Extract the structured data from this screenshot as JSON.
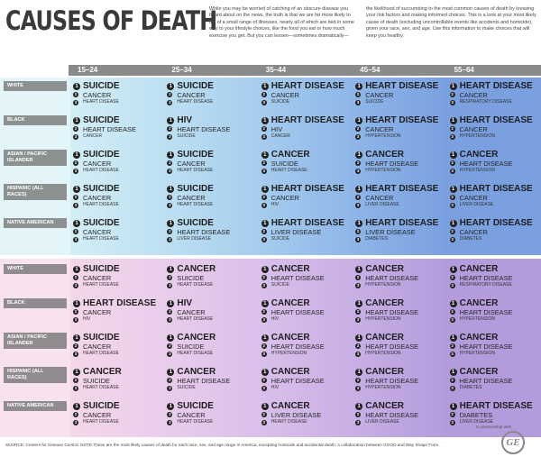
{
  "header": {
    "title": "CAUSES OF DEATH",
    "intro": [
      "While you may be worried of catching of an obscure disease you heard about on the news, the truth is that we are far more likely to die of a small range of illnesses, nearly all of which are tied in some way to your lifestyle choices, like the food you eat or how much exercise you get. But you can lessen—sometimes dramatically—",
      "the likelihood of succumbing to the most common causes of death by knowing your risk factors and making informed choices. This is a look at your most likely cause of death (excluding uncontrollable events like accidents and homicide), given your race, sex, and age. Use this information to make choices that will keep you healthy."
    ]
  },
  "age_groups": [
    "15–24",
    "25–34",
    "35–44",
    "45–54",
    "55–64"
  ],
  "ranks": [
    "1",
    "2",
    "3"
  ],
  "sections": [
    {
      "rows": [
        {
          "label": "WHITE",
          "cells": [
            [
              "SUICIDE",
              "CANCER",
              "HEART DISEASE"
            ],
            [
              "SUICIDE",
              "CANCER",
              "HEART DISEASE"
            ],
            [
              "HEART DISEASE",
              "CANCER",
              "SUICIDE"
            ],
            [
              "HEART DISEASE",
              "CANCER",
              "SUICIDE"
            ],
            [
              "HEART DISEASE",
              "CANCER",
              "RESPIRATORY DISEASE"
            ]
          ]
        },
        {
          "label": "BLACK",
          "cells": [
            [
              "SUICIDE",
              "HEART DISEASE",
              "CANCER"
            ],
            [
              "HIV",
              "HEART DISEASE",
              "SUICIDE"
            ],
            [
              "HEART DISEASE",
              "HIV",
              "CANCER"
            ],
            [
              "HEART DISEASE",
              "CANCER",
              "HYPERTENSION"
            ],
            [
              "HEART DISEASE",
              "CANCER",
              "HYPERTENSION"
            ]
          ]
        },
        {
          "label": "ASIAN / PACIFIC ISLANDER",
          "cells": [
            [
              "SUICIDE",
              "CANCER",
              "HEART DISEASE"
            ],
            [
              "SUICIDE",
              "CANCER",
              "HEART DISEASE"
            ],
            [
              "CANCER",
              "SUICIDE",
              "HEART DISEASE"
            ],
            [
              "CANCER",
              "HEART DISEASE",
              "HYPERTENSION"
            ],
            [
              "CANCER",
              "HEART DISEASE",
              "HYPERTENSION"
            ]
          ]
        },
        {
          "label": "HISPANIC (ALL RACES)",
          "cells": [
            [
              "SUICIDE",
              "CANCER",
              "HEART DISEASE"
            ],
            [
              "SUICIDE",
              "CANCER",
              "HEART DISEASE"
            ],
            [
              "HEART DISEASE",
              "CANCER",
              "HIV"
            ],
            [
              "HEART DISEASE",
              "CANCER",
              "LIVER DISEASE"
            ],
            [
              "HEART DISEASE",
              "CANCER",
              "LIVER DISEASE"
            ]
          ]
        },
        {
          "label": "NATIVE AMERICAN",
          "cells": [
            [
              "SUICIDE",
              "CANCER",
              "HEART DISEASE"
            ],
            [
              "SUICIDE",
              "HEART DISEASE",
              "LIVER DISEASE"
            ],
            [
              "HEART DISEASE",
              "LIVER DISEASE",
              "SUICIDE"
            ],
            [
              "HEART DISEASE",
              "LIVER DISEASE",
              "DIABETES"
            ],
            [
              "HEART DISEASE",
              "CANCER",
              "DIABETES"
            ]
          ]
        }
      ]
    },
    {
      "rows": [
        {
          "label": "WHITE",
          "cells": [
            [
              "SUICIDE",
              "CANCER",
              "HEART DISEASE"
            ],
            [
              "CANCER",
              "SUICIDE",
              "HEART DISEASE"
            ],
            [
              "CANCER",
              "HEART DISEASE",
              "SUICIDE"
            ],
            [
              "CANCER",
              "HEART DISEASE",
              "HYPERTENSION"
            ],
            [
              "CANCER",
              "HEART DISEASE",
              "RESPIRATORY DISEASE"
            ]
          ]
        },
        {
          "label": "BLACK",
          "cells": [
            [
              "HEART DISEASE",
              "CANCER",
              "HIV"
            ],
            [
              "HIV",
              "CANCER",
              "HEART DISEASE"
            ],
            [
              "CANCER",
              "HEART DISEASE",
              "HIV"
            ],
            [
              "CANCER",
              "HEART DISEASE",
              "HYPERTENSION"
            ],
            [
              "CANCER",
              "HEART DISEASE",
              "HYPERTENSION"
            ]
          ]
        },
        {
          "label": "ASIAN / PACIFIC ISLANDER",
          "cells": [
            [
              "SUICIDE",
              "CANCER",
              "HEART DISEASE"
            ],
            [
              "CANCER",
              "SUICIDE",
              "HEART DISEASE"
            ],
            [
              "CANCER",
              "HEART DISEASE",
              "HYPERTENSION"
            ],
            [
              "CANCER",
              "HEART DISEASE",
              "HYPERTENSION"
            ],
            [
              "CANCER",
              "HEART DISEASE",
              "HYPERTENSION"
            ]
          ]
        },
        {
          "label": "HISPANIC (ALL RACES)",
          "cells": [
            [
              "CANCER",
              "SUICIDE",
              "HEART DISEASE"
            ],
            [
              "CANCER",
              "HEART DISEASE",
              "SUICIDE"
            ],
            [
              "CANCER",
              "HEART DISEASE",
              "HIV"
            ],
            [
              "CANCER",
              "HEART DISEASE",
              "HYPERTENSION"
            ],
            [
              "CANCER",
              "HEART DISEASE",
              "DIABETES"
            ]
          ]
        },
        {
          "label": "NATIVE AMERICAN",
          "cells": [
            [
              "SUICIDE",
              "CANCER",
              "HEART DISEASE"
            ],
            [
              "SUICIDE",
              "CANCER",
              "HEART DISEASE"
            ],
            [
              "CANCER",
              "LIVER DISEASE",
              "HEART DISEASE"
            ],
            [
              "CANCER",
              "HEART DISEASE",
              "LIVER DISEASE"
            ],
            [
              "HEART DISEASE",
              "DIABETES",
              "LIVER DISEASE"
            ]
          ]
        }
      ]
    }
  ],
  "footer": {
    "source": "SOURCE: Centers for Disease Control. NOTE These are the most likely causes of death for each race, sex, and age range in America, excepting homicide and accidental death. A collaboration between GOOD and Way Shape Form.",
    "partner": "In partnership with",
    "logo": "GE"
  }
}
